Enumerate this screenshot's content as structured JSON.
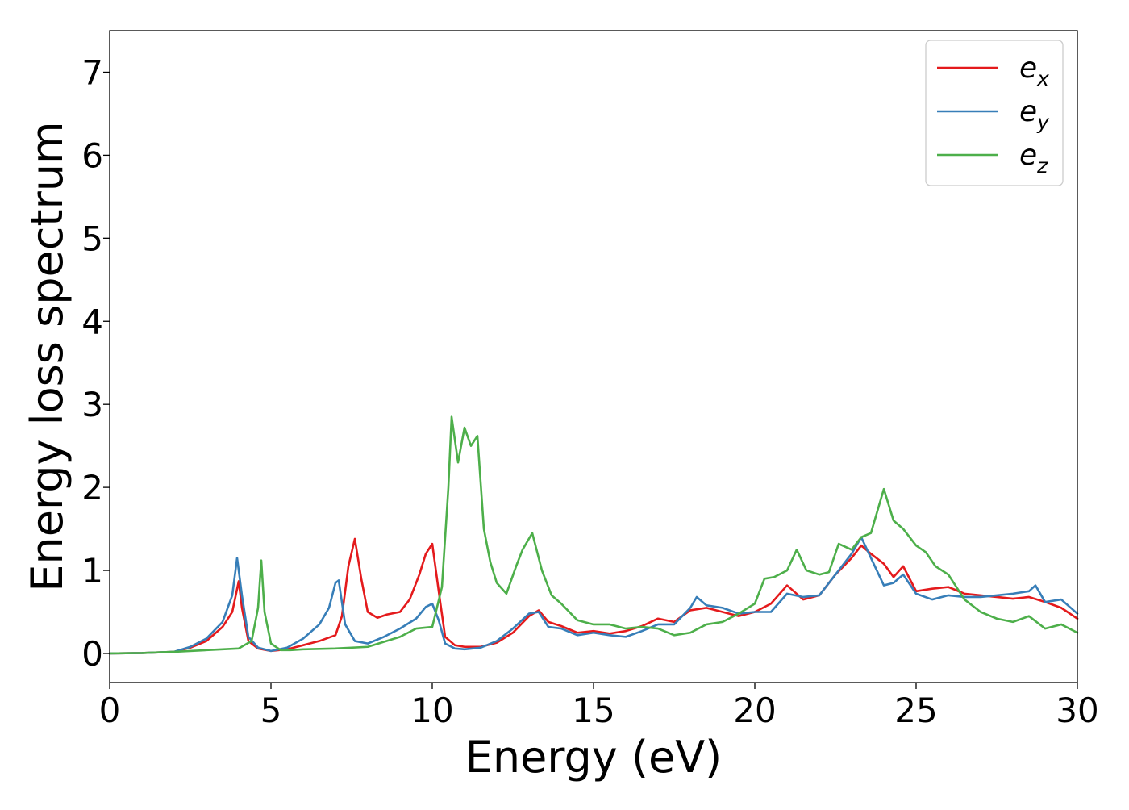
{
  "chart_data": {
    "type": "line",
    "title": "",
    "xlabel": "Energy (eV)",
    "ylabel": "Energy loss spectrum",
    "xlim": [
      0,
      30
    ],
    "ylim": [
      -0.35,
      7.5
    ],
    "xticks": [
      0,
      5,
      10,
      15,
      20,
      25,
      30
    ],
    "yticks": [
      0,
      1,
      2,
      3,
      4,
      5,
      6,
      7
    ],
    "grid": false,
    "legend": {
      "placement": "top-right",
      "entries": [
        {
          "base": "e",
          "sub": "x",
          "color": "#e41a1c"
        },
        {
          "base": "e",
          "sub": "y",
          "color": "#377eb8"
        },
        {
          "base": "e",
          "sub": "z",
          "color": "#4daf4a"
        }
      ]
    },
    "series": [
      {
        "name": "e_x",
        "color": "#e41a1c",
        "x": [
          0,
          1,
          2,
          2.5,
          3,
          3.5,
          3.8,
          4.0,
          4.1,
          4.3,
          4.6,
          5.0,
          5.5,
          6.0,
          6.5,
          7.0,
          7.2,
          7.4,
          7.6,
          7.8,
          8.0,
          8.3,
          8.6,
          9.0,
          9.3,
          9.6,
          9.8,
          10.0,
          10.2,
          10.4,
          10.7,
          11.0,
          11.5,
          12.0,
          12.5,
          13.0,
          13.3,
          13.6,
          14.0,
          14.5,
          15.0,
          15.5,
          16.0,
          16.5,
          17.0,
          17.5,
          18.0,
          18.5,
          19.0,
          19.5,
          20.0,
          20.5,
          21.0,
          21.5,
          22.0,
          22.5,
          23.0,
          23.3,
          23.6,
          24.0,
          24.3,
          24.6,
          25.0,
          25.5,
          26.0,
          26.5,
          27.0,
          27.5,
          28.0,
          28.5,
          29.0,
          29.5,
          30.0
        ],
        "y": [
          0,
          0.005,
          0.02,
          0.07,
          0.15,
          0.32,
          0.5,
          0.87,
          0.55,
          0.15,
          0.06,
          0.03,
          0.05,
          0.1,
          0.15,
          0.22,
          0.45,
          1.05,
          1.38,
          0.9,
          0.5,
          0.43,
          0.47,
          0.5,
          0.65,
          0.95,
          1.2,
          1.32,
          0.75,
          0.2,
          0.1,
          0.08,
          0.08,
          0.13,
          0.25,
          0.45,
          0.52,
          0.38,
          0.33,
          0.25,
          0.27,
          0.24,
          0.27,
          0.33,
          0.42,
          0.38,
          0.52,
          0.55,
          0.5,
          0.45,
          0.5,
          0.6,
          0.82,
          0.65,
          0.7,
          0.95,
          1.15,
          1.3,
          1.2,
          1.08,
          0.92,
          1.05,
          0.75,
          0.78,
          0.8,
          0.72,
          0.7,
          0.68,
          0.66,
          0.68,
          0.62,
          0.55,
          0.42
        ]
      },
      {
        "name": "e_y",
        "color": "#377eb8",
        "x": [
          0,
          1,
          2,
          2.5,
          3,
          3.5,
          3.8,
          3.95,
          4.1,
          4.3,
          4.6,
          5.0,
          5.5,
          6.0,
          6.5,
          6.8,
          7.0,
          7.1,
          7.3,
          7.6,
          8.0,
          8.5,
          9.0,
          9.5,
          9.8,
          10.0,
          10.2,
          10.4,
          10.7,
          11.0,
          11.5,
          12.0,
          12.5,
          13.0,
          13.3,
          13.6,
          14.0,
          14.5,
          15.0,
          15.5,
          16.0,
          16.5,
          17.0,
          17.5,
          18.0,
          18.2,
          18.5,
          19.0,
          19.5,
          20.0,
          20.5,
          21.0,
          21.5,
          22.0,
          22.5,
          23.0,
          23.3,
          23.6,
          24.0,
          24.3,
          24.6,
          25.0,
          25.5,
          26.0,
          26.5,
          27.0,
          27.5,
          28.0,
          28.5,
          28.7,
          29.0,
          29.5,
          30.0
        ],
        "y": [
          0,
          0.005,
          0.02,
          0.08,
          0.18,
          0.38,
          0.7,
          1.15,
          0.7,
          0.2,
          0.07,
          0.03,
          0.07,
          0.18,
          0.35,
          0.55,
          0.85,
          0.88,
          0.35,
          0.15,
          0.12,
          0.2,
          0.3,
          0.42,
          0.56,
          0.6,
          0.4,
          0.12,
          0.06,
          0.05,
          0.07,
          0.15,
          0.3,
          0.48,
          0.5,
          0.32,
          0.3,
          0.22,
          0.25,
          0.22,
          0.2,
          0.27,
          0.35,
          0.35,
          0.55,
          0.68,
          0.58,
          0.55,
          0.48,
          0.5,
          0.5,
          0.72,
          0.68,
          0.7,
          0.95,
          1.2,
          1.4,
          1.15,
          0.82,
          0.85,
          0.95,
          0.72,
          0.65,
          0.7,
          0.68,
          0.68,
          0.7,
          0.72,
          0.75,
          0.82,
          0.62,
          0.65,
          0.48
        ]
      },
      {
        "name": "e_z",
        "color": "#4daf4a",
        "x": [
          0,
          1,
          2,
          3,
          4,
          4.4,
          4.6,
          4.7,
          4.8,
          5.0,
          5.3,
          5.6,
          6.0,
          7.0,
          8.0,
          9.0,
          9.5,
          10.0,
          10.3,
          10.5,
          10.6,
          10.8,
          11.0,
          11.2,
          11.4,
          11.6,
          11.8,
          12.0,
          12.3,
          12.6,
          12.8,
          13.1,
          13.4,
          13.7,
          14.0,
          14.5,
          15.0,
          15.5,
          16.0,
          16.5,
          17.0,
          17.5,
          18.0,
          18.5,
          19.0,
          19.5,
          20.0,
          20.3,
          20.6,
          21.0,
          21.3,
          21.6,
          22.0,
          22.3,
          22.6,
          23.0,
          23.3,
          23.6,
          24.0,
          24.3,
          24.6,
          25.0,
          25.3,
          25.6,
          26.0,
          26.5,
          27.0,
          27.5,
          28.0,
          28.5,
          29.0,
          29.5,
          30.0
        ],
        "y": [
          0,
          0.005,
          0.02,
          0.04,
          0.06,
          0.15,
          0.55,
          1.12,
          0.5,
          0.12,
          0.04,
          0.04,
          0.05,
          0.06,
          0.08,
          0.2,
          0.3,
          0.32,
          0.8,
          2.0,
          2.85,
          2.3,
          2.72,
          2.5,
          2.62,
          1.5,
          1.1,
          0.85,
          0.72,
          1.05,
          1.25,
          1.45,
          1.0,
          0.7,
          0.6,
          0.4,
          0.35,
          0.35,
          0.3,
          0.32,
          0.3,
          0.22,
          0.25,
          0.35,
          0.38,
          0.48,
          0.6,
          0.9,
          0.92,
          1.0,
          1.25,
          1.0,
          0.95,
          0.98,
          1.32,
          1.25,
          1.4,
          1.45,
          1.98,
          1.6,
          1.5,
          1.3,
          1.22,
          1.05,
          0.95,
          0.65,
          0.5,
          0.42,
          0.38,
          0.45,
          0.3,
          0.35,
          0.25
        ]
      }
    ]
  }
}
